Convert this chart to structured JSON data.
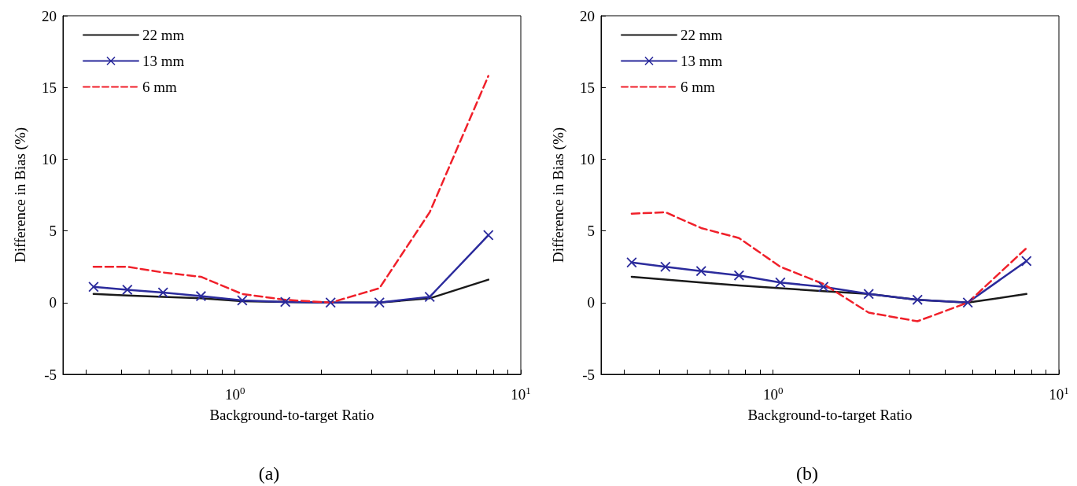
{
  "chart_data": [
    {
      "type": "line",
      "xlabel": "Background-to-target Ratio",
      "ylabel": "Difference in Bias (%)",
      "annotations": [
        "(a)"
      ],
      "log": "x",
      "xlim": [
        0.25,
        10
      ],
      "ylim": [
        -5,
        20
      ],
      "yticks": [
        -5,
        0,
        5,
        10,
        15,
        20
      ],
      "xticks": [
        {
          "value": 0.3,
          "label": null
        },
        {
          "value": 0.4,
          "label": null
        },
        {
          "value": 0.5,
          "label": null
        },
        {
          "value": 0.6,
          "label": null
        },
        {
          "value": 0.7,
          "label": null
        },
        {
          "value": 0.8,
          "label": null
        },
        {
          "value": 0.9,
          "label": null
        },
        {
          "value": 1,
          "label": "10$^{0}$"
        },
        {
          "value": 2,
          "label": null
        },
        {
          "value": 3,
          "label": null
        },
        {
          "value": 4,
          "label": null
        },
        {
          "value": 5,
          "label": null
        },
        {
          "value": 6,
          "label": null
        },
        {
          "value": 7,
          "label": null
        },
        {
          "value": 8,
          "label": null
        },
        {
          "value": 9,
          "label": null
        },
        {
          "value": 10,
          "label": "10$^{1}$"
        }
      ],
      "grid": false,
      "legend": "top left",
      "x": [
        0.32,
        0.42,
        0.56,
        0.76,
        1.06,
        1.5,
        2.16,
        3.2,
        4.8,
        7.7
      ],
      "series": [
        {
          "name": "22 mm",
          "color": "#1a1a1a",
          "marker": "none",
          "line_style": "solid",
          "values": [
            0.6,
            0.5,
            0.4,
            0.3,
            0.1,
            0.05,
            0,
            0,
            0.3,
            1.6
          ]
        },
        {
          "name": "13 mm",
          "color": "#2b2b9c",
          "marker": "cross",
          "line_style": "solid",
          "values": [
            1.1,
            0.9,
            0.7,
            0.45,
            0.15,
            0.05,
            0,
            0,
            0.4,
            4.7
          ]
        },
        {
          "name": "6 mm",
          "color": "#f0202a",
          "marker": "none",
          "line_style": "dashed",
          "values": [
            2.5,
            2.5,
            2.1,
            1.8,
            0.6,
            0.2,
            0,
            1.0,
            6.3,
            15.8
          ]
        }
      ]
    },
    {
      "type": "line",
      "xlabel": "Background-to-target Ratio",
      "ylabel": "Difference in Bias (%)",
      "annotations": [
        "(b)"
      ],
      "log": "x",
      "xlim": [
        0.25,
        10
      ],
      "ylim": [
        -5,
        20
      ],
      "yticks": [
        -5,
        0,
        5,
        10,
        15,
        20
      ],
      "xticks": [
        {
          "value": 0.3,
          "label": null
        },
        {
          "value": 0.4,
          "label": null
        },
        {
          "value": 0.5,
          "label": null
        },
        {
          "value": 0.6,
          "label": null
        },
        {
          "value": 0.7,
          "label": null
        },
        {
          "value": 0.8,
          "label": null
        },
        {
          "value": 0.9,
          "label": null
        },
        {
          "value": 1,
          "label": "10$^{0}$"
        },
        {
          "value": 2,
          "label": null
        },
        {
          "value": 3,
          "label": null
        },
        {
          "value": 4,
          "label": null
        },
        {
          "value": 5,
          "label": null
        },
        {
          "value": 6,
          "label": null
        },
        {
          "value": 7,
          "label": null
        },
        {
          "value": 8,
          "label": null
        },
        {
          "value": 9,
          "label": null
        },
        {
          "value": 10,
          "label": "10$^{1}$"
        }
      ],
      "grid": false,
      "legend": "top left",
      "x": [
        0.32,
        0.42,
        0.56,
        0.76,
        1.06,
        1.5,
        2.16,
        3.2,
        4.8,
        7.7
      ],
      "series": [
        {
          "name": "22 mm",
          "color": "#1a1a1a",
          "marker": "none",
          "line_style": "solid",
          "values": [
            1.8,
            1.6,
            1.4,
            1.2,
            1.0,
            0.8,
            0.6,
            0.2,
            0,
            0.6
          ]
        },
        {
          "name": "13 mm",
          "color": "#2b2b9c",
          "marker": "cross",
          "line_style": "solid",
          "values": [
            2.8,
            2.5,
            2.2,
            1.9,
            1.4,
            1.1,
            0.6,
            0.2,
            0,
            2.9
          ]
        },
        {
          "name": "6 mm",
          "color": "#f0202a",
          "marker": "none",
          "line_style": "dashed",
          "values": [
            6.2,
            6.3,
            5.2,
            4.5,
            2.5,
            1.3,
            -0.7,
            -1.3,
            0,
            3.8
          ]
        }
      ]
    }
  ]
}
